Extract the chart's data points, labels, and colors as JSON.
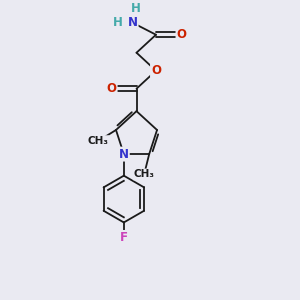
{
  "background_color": "#eaeaf2",
  "bond_color": "#1a1a1a",
  "atom_colors": {
    "N": "#3333cc",
    "O": "#cc2200",
    "F": "#cc44bb",
    "H": "#44aaaa",
    "C": "#1a1a1a"
  },
  "font_size_atoms": 8.5,
  "font_size_small": 7.5,
  "lw": 1.3
}
